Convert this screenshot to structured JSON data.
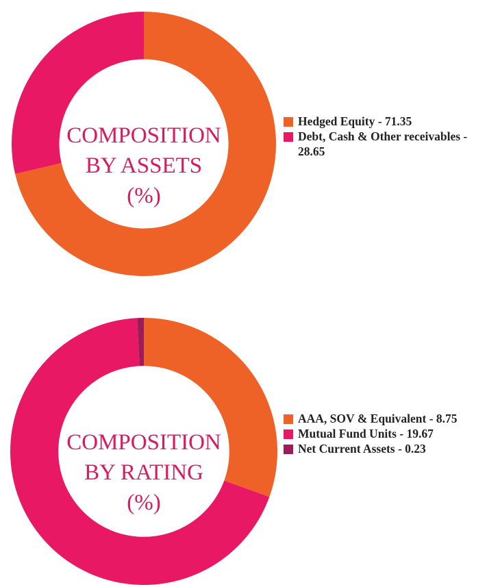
{
  "colors": {
    "orange": "#ee6227",
    "pink": "#e91864",
    "maroon": "#9c1c5a",
    "title": "#d81b60"
  },
  "chart_data": [
    {
      "type": "pie",
      "title_lines": [
        "COMPOSITION",
        "BY ASSETS",
        "(%)"
      ],
      "slices": [
        {
          "label": "Hedged Equity - 71.35",
          "value": 71.35,
          "color": "#ee6227"
        },
        {
          "label": "Debt, Cash & Other receivables - 28.65",
          "value": 28.65,
          "color": "#e91864"
        }
      ],
      "legend_position": "right"
    },
    {
      "type": "pie",
      "title_lines": [
        "COMPOSITION",
        "BY RATING",
        "(%)"
      ],
      "slices": [
        {
          "label": "AAA, SOV & Equivalent - 8.75",
          "value": 8.75,
          "color": "#ee6227"
        },
        {
          "label": "Mutual Fund Units - 19.67",
          "value": 19.67,
          "color": "#e91864"
        },
        {
          "label": "Net Current Assets - 0.23",
          "value": 0.23,
          "color": "#9c1c5a"
        }
      ],
      "legend_position": "right"
    }
  ]
}
